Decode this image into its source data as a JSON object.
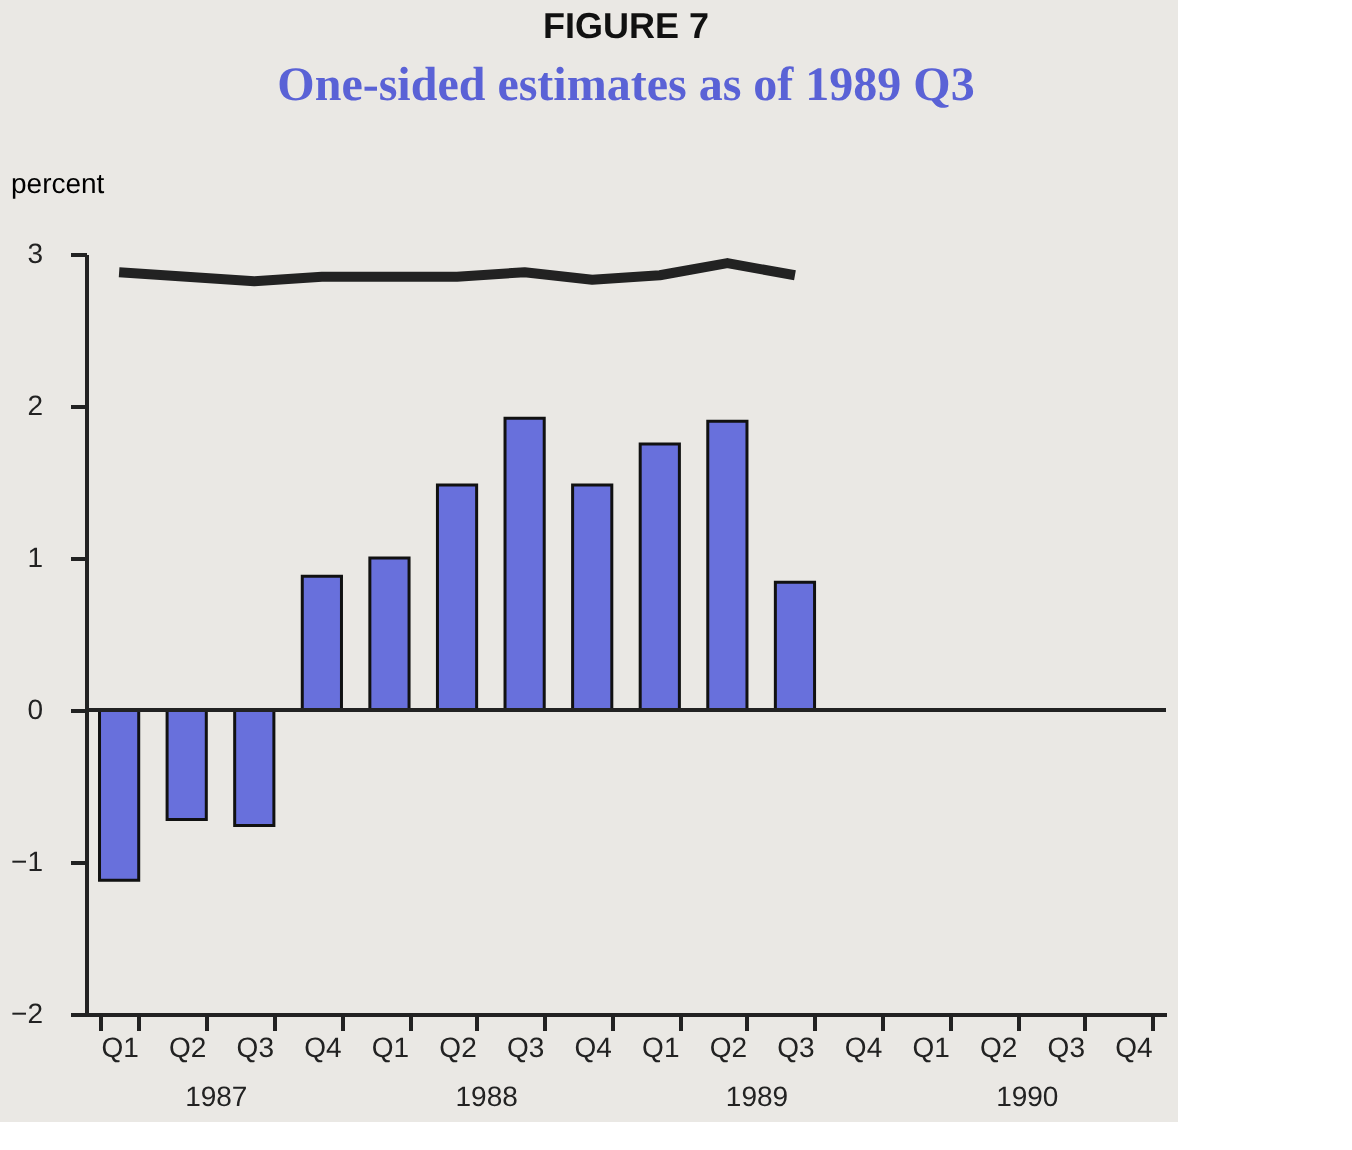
{
  "chart_data": {
    "type": "bar",
    "title": "FIGURE 7",
    "subtitle": "One-sided estimates as of 1989 Q3",
    "ylabel": "percent",
    "categories": [
      "Q1",
      "Q2",
      "Q3",
      "Q4",
      "Q1",
      "Q2",
      "Q3",
      "Q4",
      "Q1",
      "Q2",
      "Q3",
      "Q4",
      "Q1",
      "Q2",
      "Q3",
      "Q4"
    ],
    "annotations": [
      "1987",
      "1988",
      "1989",
      "1990"
    ],
    "series": [
      {
        "color": "#6870dc",
        "values": [
          -1.12,
          -0.72,
          -0.76,
          0.88,
          1.0,
          1.48,
          1.92,
          1.48,
          1.75,
          1.9,
          0.84,
          null,
          null,
          null,
          null,
          null
        ]
      },
      {
        "type": "line",
        "color": "#222222",
        "values": [
          2.88,
          2.85,
          2.82,
          2.85,
          2.85,
          2.85,
          2.88,
          2.83,
          2.86,
          2.94,
          2.86,
          null,
          null,
          null,
          null,
          null
        ]
      }
    ],
    "ylim": [
      -2,
      3
    ],
    "yticks": [
      -2,
      -1,
      0,
      1,
      2,
      3
    ],
    "ref_lines": [
      {
        "axis": "y",
        "value": 0,
        "color": "#222222"
      }
    ],
    "tick_labels": true
  }
}
